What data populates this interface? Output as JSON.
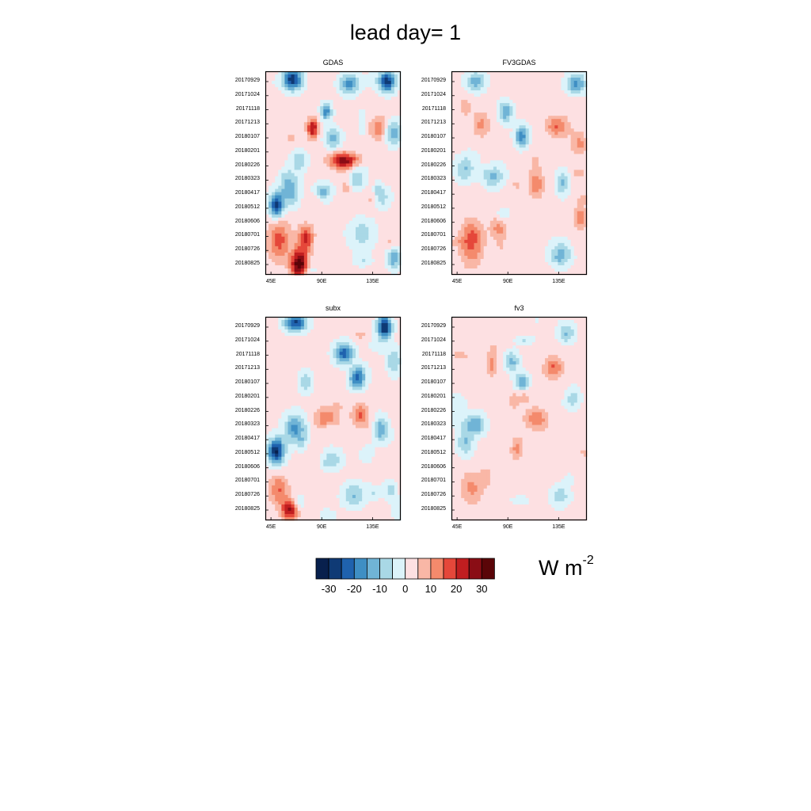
{
  "title": "lead day= 1",
  "units": {
    "base": "W m",
    "exponent": "-2"
  },
  "colorbar": {
    "colors": [
      "#08204d",
      "#0f3a75",
      "#1f62ae",
      "#3f8fc4",
      "#70b4d6",
      "#a9d8e6",
      "#dcf3fa",
      "#fde0e2",
      "#f9b7a6",
      "#f48a6c",
      "#e5473a",
      "#c11e20",
      "#8a0d15",
      "#5a0508"
    ],
    "levels": [
      -30,
      -25,
      -20,
      -15,
      -10,
      -5,
      0,
      5,
      10,
      15,
      20,
      25,
      30
    ],
    "tick_labels": [
      "-30",
      "-20",
      "-10",
      "0",
      "10",
      "20",
      "30"
    ]
  },
  "chart_data": [
    {
      "type": "heatmap",
      "title": "GDAS",
      "x_ticks": [
        "45E",
        "90E",
        "135E"
      ],
      "y_ticks": [
        "20170929",
        "20171024",
        "20171118",
        "20171213",
        "20180107",
        "20180201",
        "20180226",
        "20180323",
        "20180417",
        "20180512",
        "20180606",
        "20180701",
        "20180726",
        "20180825"
      ],
      "xlim_deg": [
        40,
        160
      ],
      "seed": 11,
      "blobs": [
        [
          0.2,
          0.04,
          -30,
          0.07,
          0.05
        ],
        [
          0.9,
          0.05,
          -30,
          0.06,
          0.05
        ],
        [
          0.62,
          0.06,
          -18,
          0.07,
          0.05
        ],
        [
          0.45,
          0.2,
          -20,
          0.04,
          0.04
        ],
        [
          0.5,
          0.33,
          -14,
          0.06,
          0.05
        ],
        [
          0.95,
          0.3,
          -15,
          0.06,
          0.06
        ],
        [
          0.35,
          0.28,
          24,
          0.04,
          0.05
        ],
        [
          0.58,
          0.44,
          27,
          0.1,
          0.04
        ],
        [
          0.85,
          0.28,
          12,
          0.08,
          0.06
        ],
        [
          0.08,
          0.66,
          -28,
          0.05,
          0.06
        ],
        [
          0.18,
          0.58,
          -16,
          0.07,
          0.08
        ],
        [
          0.42,
          0.6,
          -12,
          0.06,
          0.05
        ],
        [
          0.68,
          0.52,
          -10,
          0.07,
          0.06
        ],
        [
          0.1,
          0.83,
          16,
          0.08,
          0.1
        ],
        [
          0.25,
          0.95,
          34,
          0.06,
          0.07
        ],
        [
          0.3,
          0.82,
          20,
          0.06,
          0.06
        ],
        [
          0.72,
          0.8,
          -10,
          0.1,
          0.07
        ],
        [
          0.95,
          0.92,
          -16,
          0.05,
          0.05
        ],
        [
          0.25,
          0.44,
          -10,
          0.06,
          0.05
        ],
        [
          0.85,
          0.62,
          -10,
          0.07,
          0.05
        ]
      ]
    },
    {
      "type": "heatmap",
      "title": "FV3GDAS",
      "x_ticks": [
        "45E",
        "90E",
        "135E"
      ],
      "y_ticks": [
        "20170929",
        "20171024",
        "20171118",
        "20171213",
        "20180107",
        "20180201",
        "20180226",
        "20180323",
        "20180417",
        "20180512",
        "20180606",
        "20180701",
        "20180726",
        "20180825"
      ],
      "xlim_deg": [
        40,
        160
      ],
      "seed": 23,
      "blobs": [
        [
          0.18,
          0.05,
          -14,
          0.07,
          0.05
        ],
        [
          0.92,
          0.06,
          -18,
          0.07,
          0.05
        ],
        [
          0.4,
          0.2,
          -16,
          0.05,
          0.05
        ],
        [
          0.52,
          0.32,
          -20,
          0.05,
          0.05
        ],
        [
          0.22,
          0.26,
          10,
          0.06,
          0.06
        ],
        [
          0.78,
          0.27,
          14,
          0.08,
          0.05
        ],
        [
          0.95,
          0.35,
          12,
          0.05,
          0.05
        ],
        [
          0.3,
          0.52,
          -12,
          0.07,
          0.05
        ],
        [
          0.1,
          0.48,
          -12,
          0.07,
          0.06
        ],
        [
          0.62,
          0.55,
          10,
          0.05,
          0.08
        ],
        [
          0.82,
          0.55,
          -12,
          0.05,
          0.06
        ],
        [
          0.15,
          0.84,
          18,
          0.08,
          0.1
        ],
        [
          0.35,
          0.78,
          10,
          0.06,
          0.05
        ],
        [
          0.82,
          0.9,
          -12,
          0.07,
          0.06
        ],
        [
          0.95,
          0.72,
          12,
          0.05,
          0.05
        ]
      ]
    },
    {
      "type": "heatmap",
      "title": "subx",
      "x_ticks": [
        "45E",
        "90E",
        "135E"
      ],
      "y_ticks": [
        "20170929",
        "20171024",
        "20171118",
        "20171213",
        "20180107",
        "20180201",
        "20180226",
        "20180323",
        "20180417",
        "20180512",
        "20180606",
        "20180701",
        "20180726",
        "20180825"
      ],
      "xlim_deg": [
        40,
        160
      ],
      "seed": 37,
      "blobs": [
        [
          0.22,
          0.03,
          -28,
          0.08,
          0.04
        ],
        [
          0.88,
          0.05,
          -32,
          0.05,
          0.06
        ],
        [
          0.58,
          0.18,
          -24,
          0.07,
          0.05
        ],
        [
          0.68,
          0.3,
          -24,
          0.06,
          0.05
        ],
        [
          0.95,
          0.22,
          -12,
          0.05,
          0.06
        ],
        [
          0.45,
          0.5,
          14,
          0.08,
          0.05
        ],
        [
          0.7,
          0.48,
          14,
          0.06,
          0.05
        ],
        [
          0.08,
          0.66,
          -32,
          0.06,
          0.06
        ],
        [
          0.22,
          0.55,
          -18,
          0.08,
          0.07
        ],
        [
          0.5,
          0.7,
          -10,
          0.07,
          0.05
        ],
        [
          0.85,
          0.55,
          -16,
          0.05,
          0.06
        ],
        [
          0.1,
          0.85,
          14,
          0.07,
          0.07
        ],
        [
          0.18,
          0.95,
          24,
          0.06,
          0.05
        ],
        [
          0.65,
          0.88,
          -12,
          0.08,
          0.06
        ],
        [
          0.3,
          0.32,
          -10,
          0.05,
          0.05
        ],
        [
          0.92,
          0.85,
          -10,
          0.05,
          0.05
        ]
      ]
    },
    {
      "type": "heatmap",
      "title": "fv3",
      "x_ticks": [
        "45E",
        "90E",
        "135E"
      ],
      "y_ticks": [
        "20170929",
        "20171024",
        "20171118",
        "20171213",
        "20180107",
        "20180201",
        "20180226",
        "20180323",
        "20180417",
        "20180512",
        "20180606",
        "20180701",
        "20180726",
        "20180825"
      ],
      "xlim_deg": [
        40,
        160
      ],
      "seed": 41,
      "blobs": [
        [
          0.85,
          0.08,
          -12,
          0.06,
          0.05
        ],
        [
          0.45,
          0.22,
          -14,
          0.05,
          0.05
        ],
        [
          0.52,
          0.32,
          -16,
          0.05,
          0.04
        ],
        [
          0.75,
          0.25,
          14,
          0.07,
          0.05
        ],
        [
          0.3,
          0.24,
          10,
          0.04,
          0.05
        ],
        [
          0.62,
          0.5,
          12,
          0.08,
          0.05
        ],
        [
          0.18,
          0.53,
          -16,
          0.07,
          0.05
        ],
        [
          0.1,
          0.62,
          -12,
          0.06,
          0.06
        ],
        [
          0.48,
          0.65,
          10,
          0.04,
          0.06
        ],
        [
          0.15,
          0.84,
          10,
          0.08,
          0.08
        ],
        [
          0.8,
          0.88,
          -10,
          0.07,
          0.05
        ],
        [
          0.9,
          0.4,
          -10,
          0.05,
          0.05
        ]
      ]
    }
  ]
}
